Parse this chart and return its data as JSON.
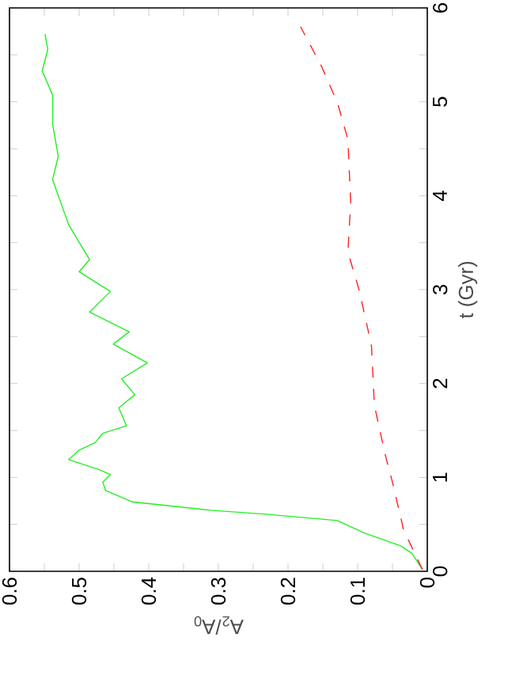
{
  "chart_data": {
    "type": "line",
    "xlabel": "A$_{2}$/A$_{0}$",
    "ylabel": "t (Gyr)",
    "xlim": [
      0.6,
      0
    ],
    "ylim": [
      0,
      6
    ],
    "yticks": [
      0,
      {
        "value": 0.5,
        "label": null
      },
      1,
      {
        "value": 1.5,
        "label": null
      },
      2,
      {
        "value": 2.5,
        "label": null
      },
      3,
      {
        "value": 3.5,
        "label": null
      },
      4,
      {
        "value": 4.5,
        "label": null
      },
      5,
      {
        "value": 5.5,
        "label": null
      },
      6
    ],
    "xticks": [
      0,
      {
        "value": 0.05,
        "label": null
      },
      0.1,
      {
        "value": 0.15,
        "label": null
      },
      0.2,
      {
        "value": 0.25,
        "label": null
      },
      0.3,
      {
        "value": 0.35,
        "label": null
      },
      0.4,
      {
        "value": 0.45,
        "label": null
      },
      0.5,
      {
        "value": 0.55,
        "label": null
      },
      0.6
    ],
    "series": [
      {
        "color": "#22ee22",
        "line_style": "solid",
        "values": [
          0.02,
          0.19,
          0.27,
          0.41,
          0.54,
          0.61,
          0.65,
          0.71,
          0.74,
          0.86,
          0.95,
          1.03,
          1.08,
          1.19,
          1.29,
          1.37,
          1.47,
          1.55,
          1.74,
          1.88,
          2.05,
          2.22,
          2.42,
          2.55,
          2.76,
          2.98,
          3.19,
          3.32,
          3.69,
          4.17,
          4.42,
          4.76,
          5.07,
          5.33,
          5.56,
          5.72
        ],
        "x": [
          0.007,
          0.022,
          0.038,
          0.091,
          0.129,
          0.235,
          0.311,
          0.386,
          0.424,
          0.462,
          0.466,
          0.455,
          0.47,
          0.515,
          0.5,
          0.477,
          0.466,
          0.432,
          0.443,
          0.42,
          0.439,
          0.402,
          0.451,
          0.428,
          0.485,
          0.455,
          0.5,
          0.485,
          0.515,
          0.538,
          0.53,
          0.538,
          0.538,
          0.553,
          0.545,
          0.549
        ]
      },
      {
        "color": "#ff2020",
        "line_style": "dashed",
        "values": [
          0.02,
          0.44,
          0.92,
          1.26,
          1.77,
          2.39,
          2.5,
          3.0,
          3.4,
          3.93,
          4.6,
          4.99,
          5.38,
          5.8
        ],
        "x": [
          0.007,
          0.034,
          0.049,
          0.061,
          0.076,
          0.08,
          0.083,
          0.098,
          0.114,
          0.11,
          0.114,
          0.129,
          0.152,
          0.182
        ]
      }
    ]
  }
}
